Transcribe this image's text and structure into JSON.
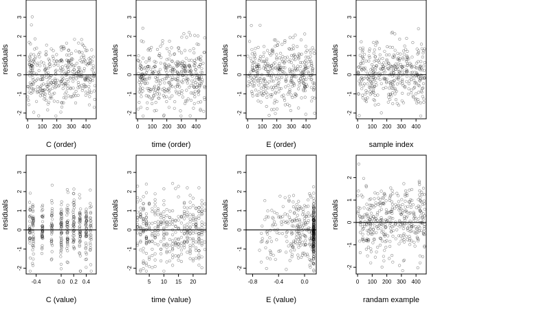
{
  "chart_data": [
    {
      "type": "scatter",
      "xlabel": "C (order)",
      "ylabel": "residuals",
      "xlim": [
        -10,
        470
      ],
      "ylim": [
        -2.3,
        3.9
      ],
      "xticks": [
        0,
        100,
        200,
        300,
        400
      ],
      "yticks": [
        -2,
        -1,
        0,
        1,
        2,
        3
      ],
      "hline": 0,
      "x_domain": [
        0,
        460
      ],
      "x_kind": "index",
      "seed": 11
    },
    {
      "type": "scatter",
      "xlabel": "time (order)",
      "ylabel": "residuals",
      "xlim": [
        -10,
        470
      ],
      "ylim": [
        -2.3,
        3.9
      ],
      "xticks": [
        0,
        100,
        200,
        300,
        400
      ],
      "yticks": [
        -2,
        -1,
        0,
        1,
        2,
        3
      ],
      "hline": 0,
      "x_domain": [
        0,
        460
      ],
      "x_kind": "index",
      "seed": 23
    },
    {
      "type": "scatter",
      "xlabel": "E (order)",
      "ylabel": "residuals",
      "xlim": [
        -10,
        470
      ],
      "ylim": [
        -2.3,
        3.9
      ],
      "xticks": [
        0,
        100,
        200,
        300,
        400
      ],
      "yticks": [
        -2,
        -1,
        0,
        1,
        2,
        3
      ],
      "hline": 0,
      "x_domain": [
        0,
        460
      ],
      "x_kind": "index",
      "seed": 37
    },
    {
      "type": "scatter",
      "xlabel": "sample index",
      "ylabel": "residuals",
      "xlim": [
        -10,
        470
      ],
      "ylim": [
        -2.3,
        3.9
      ],
      "xticks": [
        0,
        100,
        200,
        300,
        400
      ],
      "yticks": [
        -2,
        -1,
        0,
        1,
        2,
        3
      ],
      "hline": 0,
      "x_domain": [
        0,
        460
      ],
      "x_kind": "index",
      "seed": 41
    },
    {
      "type": "scatter",
      "xlabel": "C (value)",
      "ylabel": "residuals",
      "xlim": [
        -0.56,
        0.56
      ],
      "ylim": [
        -2.3,
        3.9
      ],
      "xticks": [
        -0.4,
        0.0,
        0.2,
        0.4
      ],
      "xtick_labels": [
        "-0.4",
        "0.0",
        "0.2",
        "0.4"
      ],
      "yticks": [
        -2,
        -1,
        0,
        1,
        2,
        3
      ],
      "hline": 0,
      "x_domain": [
        -0.52,
        0.52
      ],
      "x_kind": "clustered",
      "clusters": [
        -0.5,
        -0.45,
        -0.3,
        -0.15,
        0.0,
        0.1,
        0.2,
        0.3,
        0.4,
        0.47
      ],
      "seed": 53
    },
    {
      "type": "scatter",
      "xlabel": "time (value)",
      "ylabel": "residuals",
      "xlim": [
        0.5,
        24.5
      ],
      "ylim": [
        -2.3,
        3.9
      ],
      "xticks": [
        5,
        10,
        15,
        20
      ],
      "yticks": [
        -2,
        -1,
        0,
        1,
        2,
        3
      ],
      "hline": 0,
      "x_domain": [
        1,
        24
      ],
      "x_kind": "integer",
      "seed": 67
    },
    {
      "type": "scatter",
      "xlabel": "E (value)",
      "ylabel": "residuals",
      "xlim": [
        -0.9,
        0.18
      ],
      "ylim": [
        -2.3,
        3.9
      ],
      "xticks": [
        -0.8,
        -0.4,
        0.0
      ],
      "xtick_labels": [
        "-0.8",
        "-0.4",
        "0.0"
      ],
      "yticks": [
        -2,
        -1,
        0,
        1,
        2,
        3
      ],
      "hline": 0,
      "x_domain": [
        -0.85,
        0.15
      ],
      "x_kind": "skewed",
      "pile_at": 0.14,
      "seed": 79
    },
    {
      "type": "scatter",
      "xlabel": "randam example",
      "ylabel": "residuals",
      "xlim": [
        -10,
        470
      ],
      "ylim": [
        -2.3,
        3.0
      ],
      "xticks": [
        0,
        100,
        200,
        300,
        400
      ],
      "yticks": [
        -2,
        -1,
        0,
        1,
        2
      ],
      "hline": 0,
      "x_domain": [
        0,
        460
      ],
      "x_kind": "index",
      "seed": 97
    }
  ]
}
